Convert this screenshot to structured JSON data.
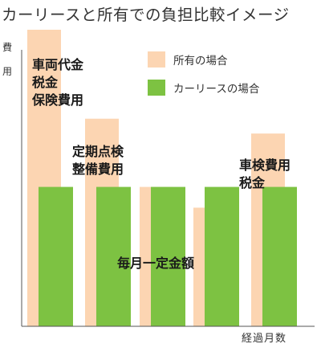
{
  "title": "カーリースと所有での負担比較イメージ",
  "axis": {
    "ylabel": "費用",
    "xlabel": "経過月数"
  },
  "colors": {
    "own": "#fcd5b2",
    "lease": "#7dc242",
    "axis": "#555555"
  },
  "legend": {
    "own": "所有の場合",
    "lease": "カーリースの場合"
  },
  "annotations": {
    "initial": [
      "車両代金",
      "税金",
      "保険費用"
    ],
    "inspection": [
      "定期点検",
      "整備費用"
    ],
    "shaken": [
      "車検費用",
      "税金"
    ],
    "monthly": "毎月一定金額"
  },
  "chart_data": {
    "type": "bar",
    "title": "カーリースと所有での負担比較イメージ",
    "xlabel": "経過月数",
    "ylabel": "費用",
    "categories": [
      "",
      "",
      "",
      "",
      ""
    ],
    "ylim": [
      0,
      100
    ],
    "grid": false,
    "legend_position": "top-right",
    "series": [
      {
        "name": "所有の場合",
        "values": [
          100,
          70,
          47,
          40,
          65
        ]
      },
      {
        "name": "カーリースの場合",
        "values": [
          47,
          47,
          47,
          47,
          47
        ]
      }
    ]
  }
}
